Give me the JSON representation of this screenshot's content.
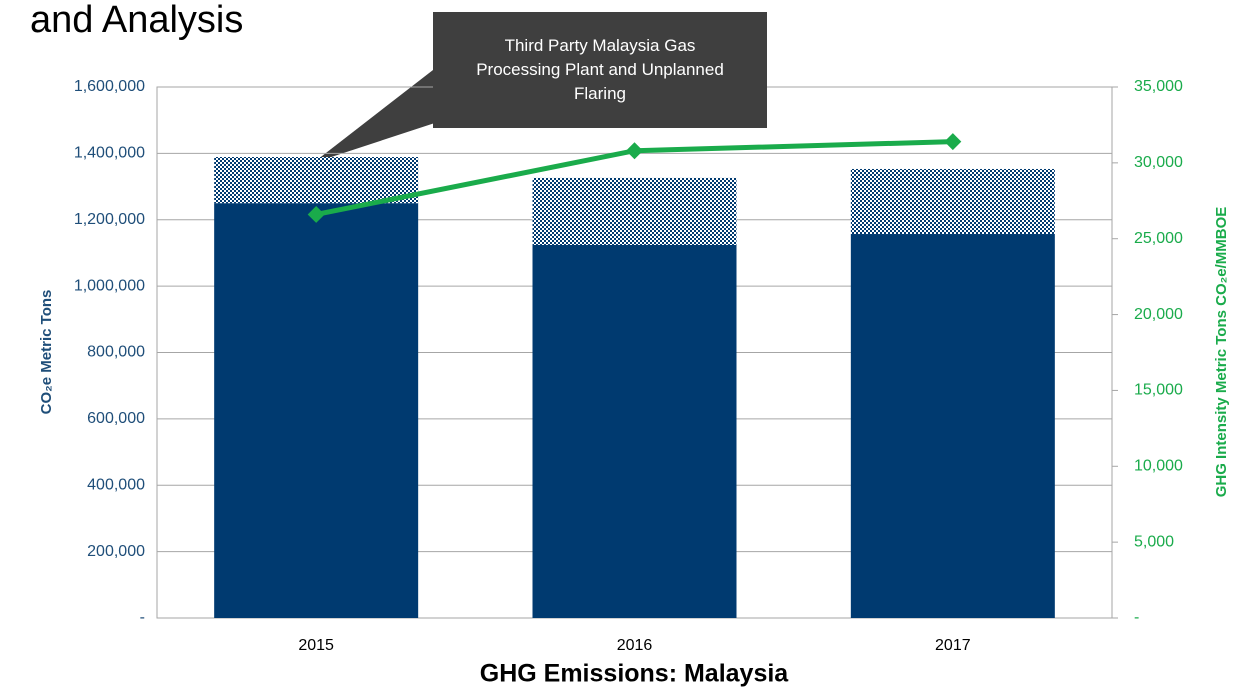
{
  "heading": "and Analysis",
  "chart_data": {
    "type": "bar",
    "title": "GHG Emissions: Malaysia",
    "ylabel": "CO₂e Metric Tons",
    "y2label": "GHG Intensity Metric Tons CO₂e/MMBOE",
    "annotation": "Third Party Malaysia Gas Processing Plant and Unplanned Flaring",
    "categories": [
      "2015",
      "2016",
      "2017"
    ],
    "series": [
      {
        "type": "bar",
        "color": "#003a70",
        "values": [
          1250000,
          1124000,
          1157000
        ]
      },
      {
        "type": "bar",
        "color": "#003a70",
        "pattern": "hatched",
        "values": [
          139000,
          202000,
          196000
        ]
      },
      {
        "type": "line",
        "color": "#1aab4b",
        "axis": "y2",
        "values": [
          26600,
          30800,
          31400
        ]
      }
    ],
    "stacked": true,
    "grid": true,
    "ylim": [
      0,
      1600000
    ],
    "yticks": [
      {
        "value": 0,
        "label": "-"
      },
      {
        "value": 200000,
        "label": "200,000"
      },
      {
        "value": 400000,
        "label": "400,000"
      },
      {
        "value": 600000,
        "label": "600,000"
      },
      {
        "value": 800000,
        "label": "800,000"
      },
      {
        "value": 1000000,
        "label": "1,000,000"
      },
      {
        "value": 1200000,
        "label": "1,200,000"
      },
      {
        "value": 1400000,
        "label": "1,400,000"
      },
      {
        "value": 1600000,
        "label": "1,600,000"
      }
    ],
    "y2lim": [
      0,
      35000
    ],
    "y2ticks": [
      {
        "value": 0,
        "label": "-"
      },
      {
        "value": 5000,
        "label": "5,000"
      },
      {
        "value": 10000,
        "label": "10,000"
      },
      {
        "value": 15000,
        "label": "15,000"
      },
      {
        "value": 20000,
        "label": "20,000"
      },
      {
        "value": 25000,
        "label": "25,000"
      },
      {
        "value": 30000,
        "label": "30,000"
      },
      {
        "value": 35000,
        "label": "35,000"
      }
    ]
  }
}
